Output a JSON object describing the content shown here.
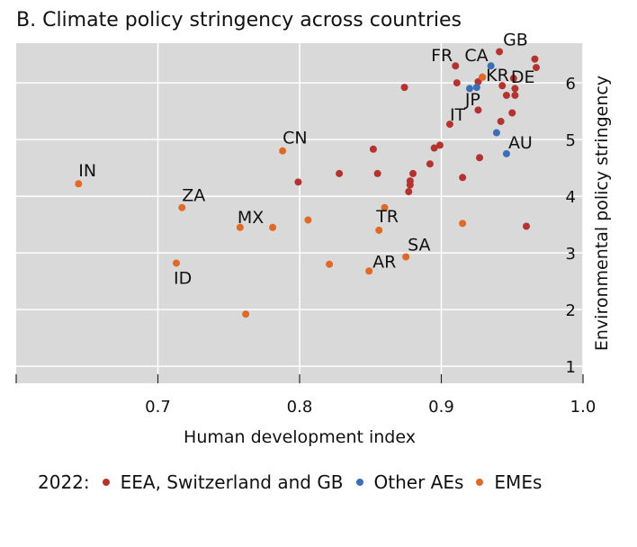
{
  "chart_data": {
    "type": "scatter",
    "title": "B. Climate policy stringency across countries",
    "xlabel": "Human development index",
    "ylabel": "Environmental policy stringency",
    "xlim": [
      0.6,
      1.0
    ],
    "ylim": [
      0.7,
      6.7
    ],
    "x_ticks": [
      0.7,
      0.8,
      0.9,
      1.0
    ],
    "x_tick_labels": [
      "0.7",
      "0.8",
      "0.9",
      "1.0"
    ],
    "y_ticks": [
      1,
      2,
      3,
      4,
      5,
      6
    ],
    "y_tick_labels": [
      "1",
      "2",
      "3",
      "4",
      "5",
      "6"
    ],
    "grid": true,
    "legend": {
      "prefix": "2022:",
      "placement": "bottom",
      "entries": [
        "EEA, Switzerland and GB",
        "Other AEs",
        "EMEs"
      ]
    },
    "series": [
      {
        "name": "EEA, Switzerland and GB",
        "color": "#b5332e",
        "points": [
          {
            "x": 0.941,
            "y": 6.55,
            "label": "GB"
          },
          {
            "x": 0.91,
            "y": 6.3,
            "label": "FR"
          },
          {
            "x": 0.951,
            "y": 6.08,
            "label": "DE"
          },
          {
            "x": 0.966,
            "y": 6.42
          },
          {
            "x": 0.967,
            "y": 6.27
          },
          {
            "x": 0.929,
            "y": 6.1
          },
          {
            "x": 0.926,
            "y": 6.02
          },
          {
            "x": 0.911,
            "y": 6.0
          },
          {
            "x": 0.874,
            "y": 5.92
          },
          {
            "x": 0.943,
            "y": 5.95
          },
          {
            "x": 0.952,
            "y": 5.9
          },
          {
            "x": 0.946,
            "y": 5.78
          },
          {
            "x": 0.952,
            "y": 5.78
          },
          {
            "x": 0.926,
            "y": 5.52
          },
          {
            "x": 0.95,
            "y": 5.47
          },
          {
            "x": 0.906,
            "y": 5.27,
            "label": "IT"
          },
          {
            "x": 0.942,
            "y": 5.32
          },
          {
            "x": 0.899,
            "y": 4.9
          },
          {
            "x": 0.895,
            "y": 4.85
          },
          {
            "x": 0.852,
            "y": 4.83
          },
          {
            "x": 0.927,
            "y": 4.68
          },
          {
            "x": 0.892,
            "y": 4.57
          },
          {
            "x": 0.828,
            "y": 4.4
          },
          {
            "x": 0.855,
            "y": 4.4
          },
          {
            "x": 0.88,
            "y": 4.4
          },
          {
            "x": 0.915,
            "y": 4.33
          },
          {
            "x": 0.799,
            "y": 4.25
          },
          {
            "x": 0.878,
            "y": 4.27
          },
          {
            "x": 0.878,
            "y": 4.2
          },
          {
            "x": 0.877,
            "y": 4.08
          },
          {
            "x": 0.96,
            "y": 3.47
          }
        ]
      },
      {
        "name": "Other AEs",
        "color": "#3a6fb4",
        "points": [
          {
            "x": 0.935,
            "y": 6.3,
            "label": "CA"
          },
          {
            "x": 0.925,
            "y": 5.92,
            "label": "JP"
          },
          {
            "x": 0.92,
            "y": 5.9
          },
          {
            "x": 0.939,
            "y": 5.12
          },
          {
            "x": 0.946,
            "y": 4.75,
            "label": "AU"
          }
        ]
      },
      {
        "name": "EMEs",
        "color": "#e06926",
        "points": [
          {
            "x": 0.929,
            "y": 6.1,
            "label": "KR"
          },
          {
            "x": 0.788,
            "y": 4.8,
            "label": "CN"
          },
          {
            "x": 0.644,
            "y": 4.22,
            "label": "IN"
          },
          {
            "x": 0.717,
            "y": 3.8,
            "label": "ZA"
          },
          {
            "x": 0.86,
            "y": 3.8
          },
          {
            "x": 0.806,
            "y": 3.58
          },
          {
            "x": 0.915,
            "y": 3.52
          },
          {
            "x": 0.758,
            "y": 3.45,
            "label": "MX"
          },
          {
            "x": 0.781,
            "y": 3.45
          },
          {
            "x": 0.856,
            "y": 3.4,
            "label": "TR"
          },
          {
            "x": 0.875,
            "y": 2.93,
            "label": "SA"
          },
          {
            "x": 0.713,
            "y": 2.82,
            "label": "ID"
          },
          {
            "x": 0.821,
            "y": 2.8
          },
          {
            "x": 0.849,
            "y": 2.68,
            "label": "AR"
          },
          {
            "x": 0.762,
            "y": 1.92
          }
        ]
      }
    ]
  }
}
